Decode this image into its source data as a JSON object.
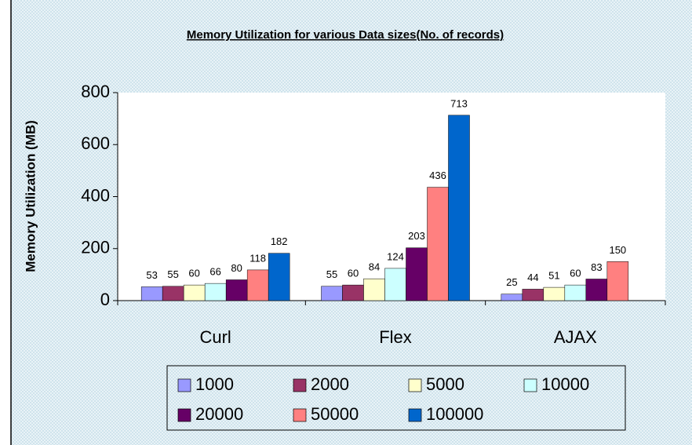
{
  "chart_data": {
    "type": "bar",
    "title": "Memory Utilization for various Data sizes(No. of records)",
    "y_label": "Memory Utilization (MB)",
    "categories": [
      "Curl",
      "Flex",
      "AJAX"
    ],
    "series": [
      {
        "name": "1000",
        "color": "#9999ff",
        "values": [
          53,
          55,
          25
        ]
      },
      {
        "name": "2000",
        "color": "#993366",
        "values": [
          55,
          60,
          44
        ]
      },
      {
        "name": "5000",
        "color": "#ffffcc",
        "values": [
          60,
          84,
          51
        ]
      },
      {
        "name": "10000",
        "color": "#ccffff",
        "values": [
          66,
          124,
          60
        ]
      },
      {
        "name": "20000",
        "color": "#660066",
        "values": [
          80,
          203,
          83
        ]
      },
      {
        "name": "50000",
        "color": "#ff8080",
        "values": [
          118,
          436,
          150
        ]
      },
      {
        "name": "100000",
        "color": "#0066cc",
        "values": [
          182,
          713,
          null
        ]
      }
    ],
    "ylim": [
      0,
      800
    ],
    "yticks": [
      0,
      200,
      400,
      600,
      800
    ],
    "legend": "bottom"
  }
}
